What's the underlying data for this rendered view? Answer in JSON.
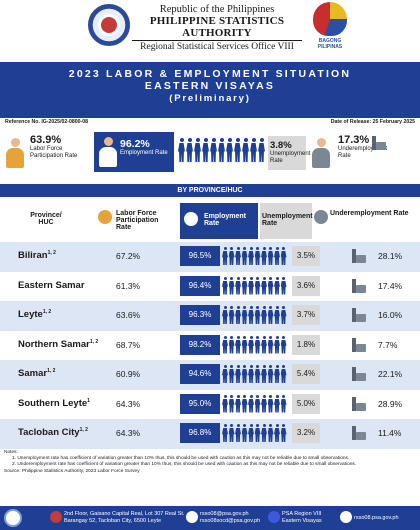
{
  "header": {
    "republic": "Republic of the Philippines",
    "agency": "PHILIPPINE STATISTICS AUTHORITY",
    "office": "Regional Statistical Services Office VIII",
    "partner_logo_text": "BAGONG PILIPINAS"
  },
  "banner": {
    "title_line1": "2023 LABOR & EMPLOYMENT SITUATION",
    "title_line2": "EASTERN VISAYAS",
    "subtitle": "(Preliminary)"
  },
  "reference": "Reference No. IG-2025/02-0800-08",
  "release_date": "Date of Release: 25 February 2025",
  "summary": {
    "lfpr_value": "63.9%",
    "lfpr_label": "Labor Force Participation Rate",
    "emp_value": "96.2%",
    "emp_label": "Employment Rate",
    "unemp_value": "3.8%",
    "unemp_label": "Unemployment Rate",
    "under_value": "17.3%",
    "under_label": "Underemployment Rate"
  },
  "section_title": "BY PROVINCE/HUC",
  "columns": {
    "province": "Province/ HUC",
    "lfpr": "Labor Force Participation Rate",
    "emp": "Employment Rate",
    "unemp": "Unemployment Rate",
    "under": "Underemployment Rate"
  },
  "rows": [
    {
      "name": "Biliran",
      "sup": "1, 2",
      "lfpr": "67.2%",
      "emp": "96.5%",
      "unemp": "3.5%",
      "under": "28.1%"
    },
    {
      "name": "Eastern Samar",
      "sup": "",
      "lfpr": "61.3%",
      "emp": "96.4%",
      "unemp": "3.6%",
      "under": "17.4%"
    },
    {
      "name": "Leyte",
      "sup": "1, 2",
      "lfpr": "63.6%",
      "emp": "96.3%",
      "unemp": "3.7%",
      "under": "16.0%"
    },
    {
      "name": "Northern Samar",
      "sup": "1, 2",
      "lfpr": "68.7%",
      "emp": "98.2%",
      "unemp": "1.8%",
      "under": "7.7%"
    },
    {
      "name": "Samar",
      "sup": "1, 2",
      "lfpr": "60.9%",
      "emp": "94.6%",
      "unemp": "5.4%",
      "under": "22.1%"
    },
    {
      "name": "Southern Leyte",
      "sup": "1",
      "lfpr": "64.3%",
      "emp": "95.0%",
      "unemp": "5.0%",
      "under": "28.9%"
    },
    {
      "name": "Tacloban City",
      "sup": "1, 2",
      "lfpr": "64.3%",
      "emp": "96.8%",
      "unemp": "3.2%",
      "under": "11.4%"
    }
  ],
  "notes": {
    "heading": "Notes:",
    "n1": "1. Unemployment rate has coefficient of variation greater than 10% thus, this should be used with caution as this may not be reliable due to small observations.",
    "n2": "2. Underemployment rate has coefficient of variation greater than 10% thus, this should be used with caution as this may not be reliable due to small observations.",
    "source": "Source: Philippine Statistics Authority, 2023 Labor Force Survey"
  },
  "footer": {
    "address1": "2nd Floor, Gaisano Capital Real, Lot 307 Real St.",
    "address2": "Barangay 52, Tacloban City, 6500 Leyte",
    "email1": "rsso08@psa.gov.ph",
    "email2": "rsso08socd@psa.gov.ph",
    "fb1": "PSA Region VIII",
    "fb2": "Eastern Visayas",
    "web": "rsso08.psa.gov.ph"
  }
}
